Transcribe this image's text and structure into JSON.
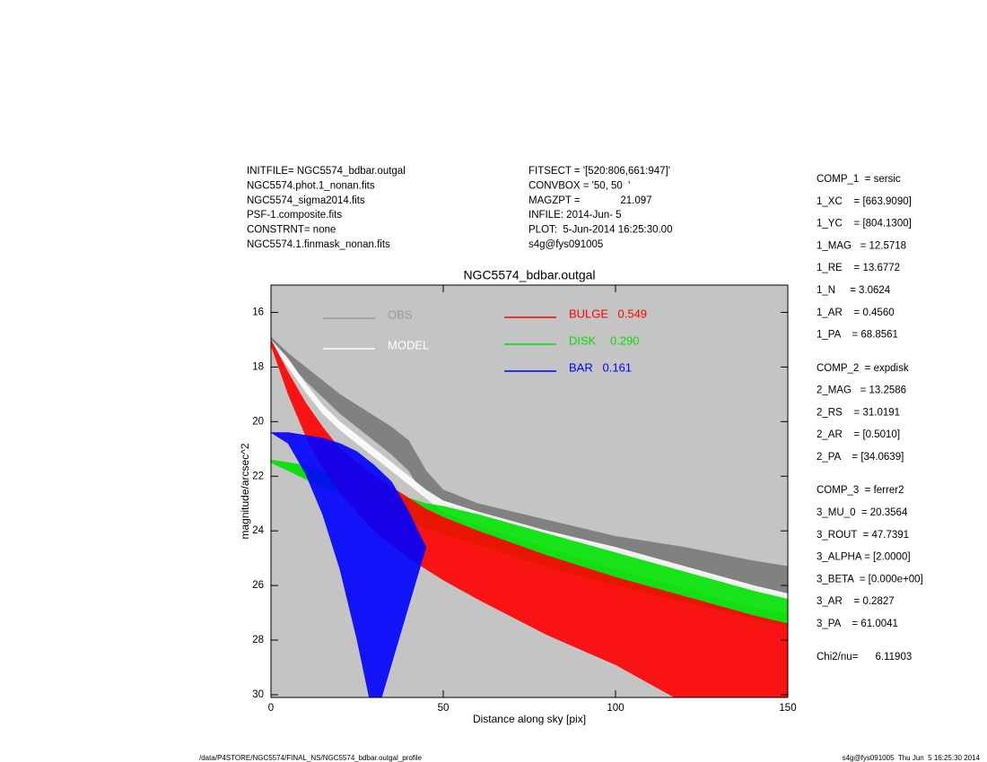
{
  "header": {
    "left": [
      "INITFILE= NGC5574_bdbar.outgal",
      "NGC5574.phot.1_nonan.fits",
      "NGC5574_sigma2014.fits",
      "PSF-1.composite.fits",
      "CONSTRNT= none",
      "NGC5574.1.finmask_nonan.fits"
    ],
    "middle": [
      "FITSECT = '[520:806,661:947]'",
      "CONVBOX = '50, 50  '",
      "MAGZPT =              21.097",
      "INFILE: 2014-Jun- 5",
      "PLOT:  5-Jun-2014 16:25:30.00",
      "s4g@fys091005"
    ]
  },
  "parameters": [
    [
      "COMP_1  = sersic",
      "1_XC    = [663.9090]",
      "1_YC    = [804.1300]",
      "1_MAG   = 12.5718",
      "1_RE    = 13.6772",
      "1_N     = 3.0624",
      "1_AR    = 0.4560",
      "1_PA    = 68.8561"
    ],
    [
      "COMP_2  = expdisk",
      "2_MAG   = 13.2586",
      "2_RS    = 31.0191",
      "2_AR    = [0.5010]",
      "2_PA    = [34.0639]"
    ],
    [
      "COMP_3  = ferrer2",
      "3_MU_0  = 20.3564",
      "3_ROUT  = 47.7391",
      "3_ALPHA = [2.0000]",
      "3_BETA  = [0.000e+00]",
      "3_AR    = 0.2827",
      "3_PA    = 61.0041"
    ],
    [
      "Chi2/nu=      6.11903"
    ]
  ],
  "footer": {
    "left": "/data/P4STORE/NGC5574/FINAL_NS/NGC5574_bdbar.outgal_profile",
    "right": "s4g@fys091005  Thu Jun  5 16:25:30 2014"
  },
  "chart_data": {
    "type": "band",
    "title": "NGC5574_bdbar.outgal",
    "x_label": "Distance along sky [pix]",
    "y_label": "magnitude/arcsec^2",
    "x": [
      0,
      5,
      10,
      15,
      20,
      25,
      30,
      35,
      40,
      45,
      50,
      60,
      80,
      100,
      120,
      140,
      150
    ],
    "xlim": [
      0,
      150
    ],
    "xticks": [
      0,
      50,
      100,
      150
    ],
    "ylim": [
      30.1,
      15
    ],
    "yticks": [
      16,
      18,
      20,
      22,
      24,
      26,
      28,
      30
    ],
    "background": "#c4c4c4",
    "series": [
      {
        "name": "OBS",
        "color": "#7a7a7a",
        "legend_color": "#999999",
        "bright": [
          16.9,
          17.5,
          18.0,
          18.5,
          19.0,
          19.4,
          19.8,
          20.2,
          20.7,
          21.8,
          22.5,
          23.0,
          23.6,
          24.2,
          24.6,
          25.1,
          25.3
        ],
        "faint": [
          17.1,
          17.8,
          18.5,
          19.1,
          19.7,
          20.2,
          20.7,
          21.2,
          21.8,
          22.8,
          23.2,
          23.6,
          24.4,
          25.1,
          25.8,
          26.4,
          26.7
        ]
      },
      {
        "name": "MODEL",
        "color": "#ffffff",
        "legend_color": "#ffffff",
        "bright": [
          17.0,
          17.7,
          18.6,
          19.4,
          20.0,
          20.5,
          21.0,
          21.5,
          22.0,
          22.5,
          22.9,
          23.3,
          24.0,
          24.6,
          25.3,
          26.0,
          26.3
        ],
        "faint": [
          17.1,
          18.0,
          18.9,
          19.7,
          20.3,
          20.8,
          21.3,
          21.8,
          22.3,
          22.8,
          23.3,
          23.8,
          24.6,
          25.4,
          26.1,
          26.8,
          27.0
        ]
      },
      {
        "name": "DISK",
        "fraction": 0.29,
        "fraction_label": "0.290",
        "color": "#00e000",
        "legend_color": "#00e000",
        "bright": [
          21.4,
          21.5,
          21.6,
          21.8,
          22.0,
          22.1,
          22.3,
          22.5,
          22.8,
          23.0,
          23.1,
          23.4,
          24.1,
          24.8,
          25.5,
          26.2,
          26.5
        ],
        "faint": [
          21.5,
          21.8,
          22.1,
          22.4,
          22.6,
          22.9,
          23.2,
          23.4,
          23.6,
          23.9,
          24.1,
          24.5,
          25.3,
          26.0,
          26.6,
          27.2,
          27.5
        ]
      },
      {
        "name": "BULGE",
        "fraction": 0.549,
        "color": "#ff0000",
        "legend_color": "#ff0000",
        "bright": [
          17.0,
          18.2,
          19.3,
          20.2,
          21.0,
          21.5,
          22.0,
          22.4,
          22.8,
          23.2,
          23.5,
          24.0,
          24.9,
          25.7,
          26.4,
          27.1,
          27.4
        ],
        "faint": [
          17.2,
          19.0,
          20.5,
          21.7,
          22.6,
          23.3,
          24.0,
          24.5,
          25.0,
          25.4,
          25.8,
          26.5,
          27.8,
          28.9,
          30.3,
          31.0,
          31.4
        ]
      },
      {
        "name": "BAR",
        "fraction": 0.161,
        "color": "#0000ff",
        "legend_color": "#0000ff",
        "bright": [
          20.4,
          20.4,
          20.5,
          20.6,
          20.8,
          21.1,
          21.6,
          22.2,
          23.3,
          24.6,
          null,
          null,
          null,
          null,
          null,
          null,
          null
        ],
        "faint": [
          20.4,
          20.8,
          21.9,
          23.4,
          25.4,
          28.0,
          31.0,
          null,
          null,
          null,
          null,
          null,
          null,
          null,
          null,
          null,
          null
        ]
      }
    ]
  }
}
